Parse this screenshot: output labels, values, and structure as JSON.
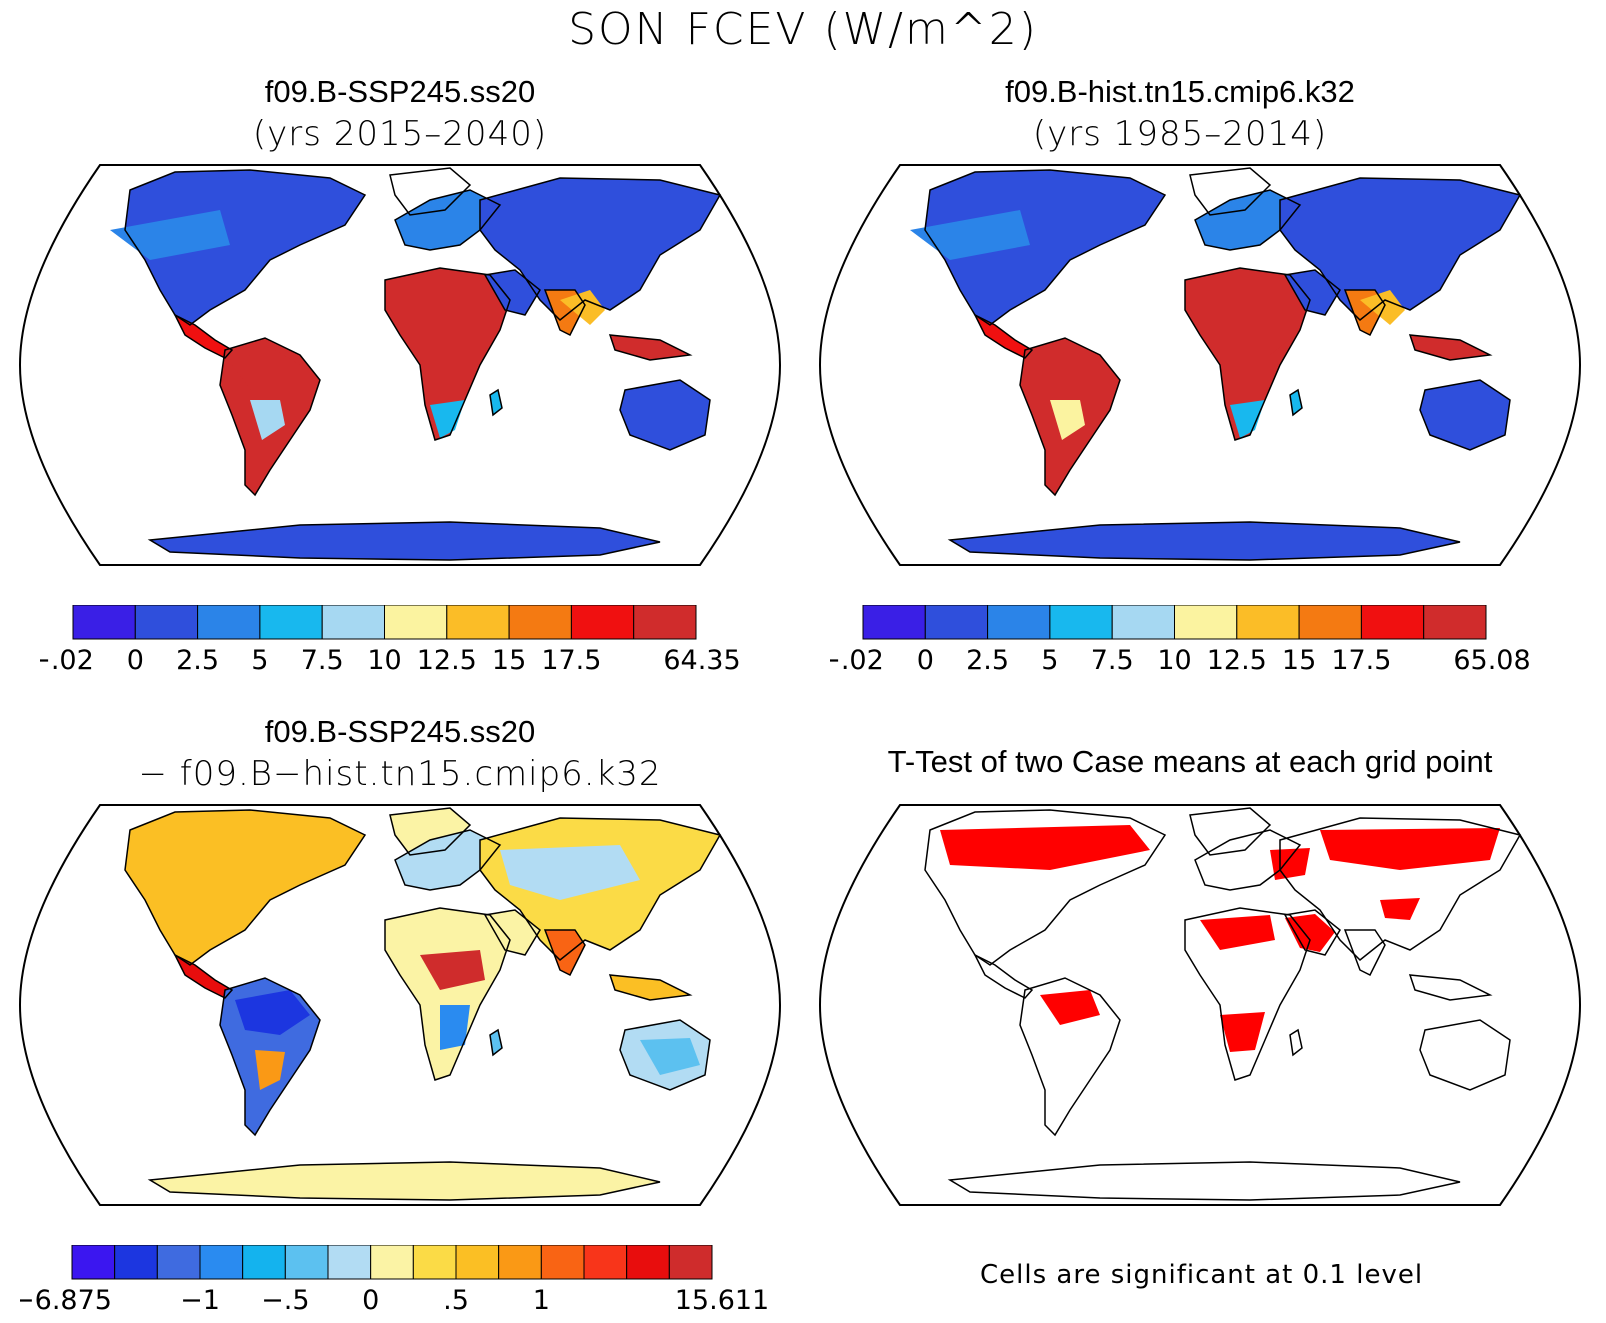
{
  "figure": {
    "title": "SON FCEV (W/m^2)"
  },
  "palettes": {
    "mean": [
      "#3a1fe6",
      "#2f4fdc",
      "#2b84e8",
      "#18b8ee",
      "#a6d8f2",
      "#fbf3a0",
      "#fbbd27",
      "#f47a12",
      "#f01010",
      "#d02c2c"
    ],
    "diff": [
      "#3b16f0",
      "#1c36e0",
      "#3f6be0",
      "#2a8bf0",
      "#14b3ee",
      "#5cc1f0",
      "#b2dcf3",
      "#fbf3a5",
      "#fbdb46",
      "#fbbf24",
      "#fa9915",
      "#f96414",
      "#f8351a",
      "#e80d0d",
      "#cf2c2c"
    ],
    "signif": "#ff0000",
    "land_default": "#ffffff"
  },
  "panels": {
    "top_left": {
      "case": "f09.B-SSP245.ss20",
      "years": "(yrs 2015–2040)",
      "colorbar_labels": [
        "−.02",
        "0",
        "2.5",
        "5",
        "7.5",
        "10",
        "12.5",
        "15",
        "17.5",
        "64.35"
      ]
    },
    "top_right": {
      "case": "f09.B-hist.tn15.cmip6.k32",
      "years": "(yrs 1985–2014)",
      "colorbar_labels": [
        "−.02",
        "0",
        "2.5",
        "5",
        "7.5",
        "10",
        "12.5",
        "15",
        "17.5",
        "65.08"
      ]
    },
    "bottom_left": {
      "case": "f09.B-SSP245.ss20",
      "minus_case": "− f09.B−hist.tn15.cmip6.k32",
      "colorbar_labels": [
        "−6.875",
        "−1",
        "−.5",
        "0",
        ".5",
        "1",
        "15.611"
      ]
    },
    "bottom_right": {
      "title": "T-Test of two Case means at each grid point",
      "note": "Cells are significant at 0.1 level"
    }
  },
  "chart_data": [
    {
      "type": "heatmap",
      "title": "f09.B-SSP245.ss20 (yrs 2015–2040)",
      "projection": "Robinson (global map)",
      "colorbar_levels": [
        -0.02,
        0,
        2.5,
        5,
        7.5,
        10,
        12.5,
        15,
        17.5,
        64.35
      ],
      "regions": [
        {
          "region": "Amazon",
          "value": 20
        },
        {
          "region": "Central Africa",
          "value": 20
        },
        {
          "region": "Maritime Continent",
          "value": 20
        },
        {
          "region": "Sahara",
          "value": 0
        },
        {
          "region": "Arabia",
          "value": 0
        },
        {
          "region": "Australia",
          "value": 1
        },
        {
          "region": "Antarctica",
          "value": 0
        },
        {
          "region": "Eurasia",
          "value": 2.5
        },
        {
          "region": "North America",
          "value": 2.5
        },
        {
          "region": "India / SE Asia",
          "value": 15
        }
      ]
    },
    {
      "type": "heatmap",
      "title": "f09.B-hist.tn15.cmip6.k32 (yrs 1985–2014)",
      "projection": "Robinson (global map)",
      "colorbar_levels": [
        -0.02,
        0,
        2.5,
        5,
        7.5,
        10,
        12.5,
        15,
        17.5,
        65.08
      ],
      "regions": [
        {
          "region": "Amazon",
          "value": 20
        },
        {
          "region": "Central Africa",
          "value": 20
        },
        {
          "region": "Maritime Continent",
          "value": 20
        },
        {
          "region": "Sahara",
          "value": 0
        },
        {
          "region": "Arabia",
          "value": 0
        },
        {
          "region": "Australia",
          "value": 1
        },
        {
          "region": "Antarctica",
          "value": 0
        },
        {
          "region": "Eurasia",
          "value": 2.5
        },
        {
          "region": "North America",
          "value": 2.5
        },
        {
          "region": "India / SE Asia",
          "value": 15
        }
      ]
    },
    {
      "type": "heatmap",
      "title": "f09.B-SSP245.ss20 − f09.B−hist.tn15.cmip6.k32",
      "projection": "Robinson (global map)",
      "colorbar_levels": [
        -6.875,
        -1,
        -0.5,
        0,
        0.5,
        1,
        15.611
      ],
      "regions": [
        {
          "region": "Amazon",
          "value": -1.5
        },
        {
          "region": "Central Africa",
          "value": 1.5
        },
        {
          "region": "Southern Africa",
          "value": -1
        },
        {
          "region": "Sahara",
          "value": 0.1
        },
        {
          "region": "Australia",
          "value": -0.3
        },
        {
          "region": "Antarctica",
          "value": 0.1
        },
        {
          "region": "Eurasia",
          "value": 0.3
        },
        {
          "region": "North America",
          "value": 0.5
        }
      ]
    },
    {
      "type": "heatmap",
      "title": "T-Test of two Case means at each grid point",
      "projection": "Robinson (global map)",
      "legend": "Cells are significant at 0.1 level",
      "significant_regions": [
        "Canada",
        "Siberia",
        "Sahara",
        "Arabia",
        "Southern Africa",
        "Amazon",
        "Eastern Europe"
      ]
    }
  ]
}
